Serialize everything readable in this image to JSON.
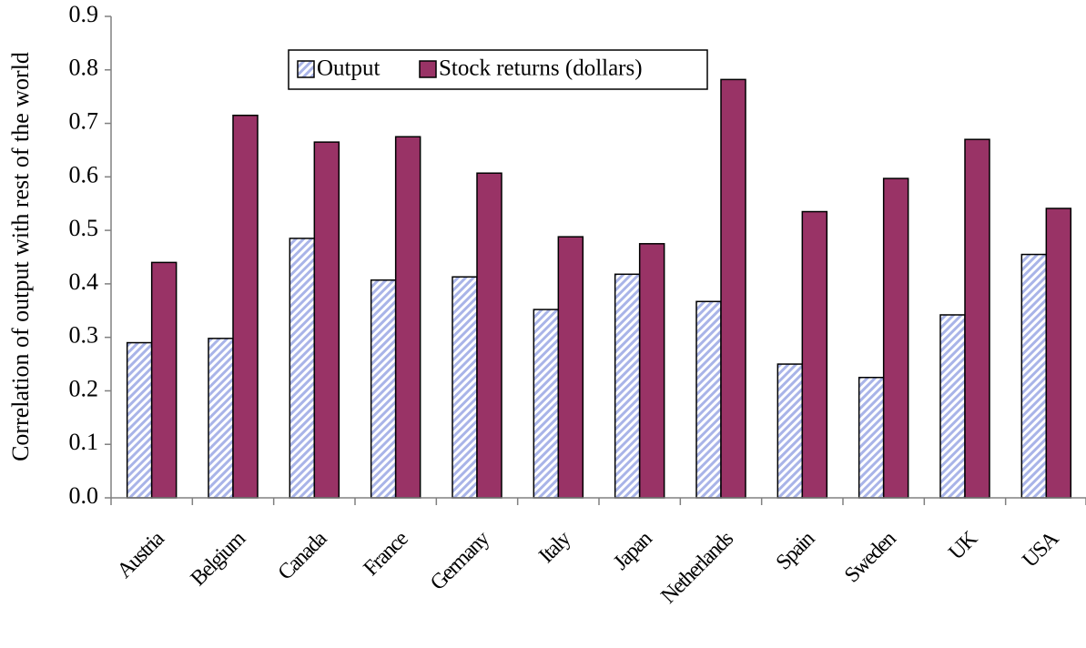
{
  "chart_data": {
    "type": "bar",
    "y_label": "Correlation of output with rest of the world",
    "categories": [
      "Austria",
      "Belgium",
      "Canada",
      "France",
      "Germany",
      "Italy",
      "Japan",
      "Netherlands",
      "Spain",
      "Sweden",
      "UK",
      "USA"
    ],
    "series": [
      {
        "name": "Output",
        "color": "#a9b4e8",
        "values": [
          0.29,
          0.298,
          0.485,
          0.407,
          0.413,
          0.352,
          0.418,
          0.367,
          0.25,
          0.225,
          0.342,
          0.455
        ]
      },
      {
        "name": "Stock returns (dollars)",
        "color": "#993366",
        "values": [
          0.44,
          0.715,
          0.665,
          0.675,
          0.607,
          0.488,
          0.475,
          0.782,
          0.535,
          0.597,
          0.67,
          0.541
        ]
      }
    ],
    "ylim": [
      0,
      0.9
    ],
    "yticks": [
      {
        "value": 0,
        "label": "0.0"
      },
      0.1,
      0.2,
      0.3,
      0.4,
      0.5,
      0.6,
      0.7,
      0.8,
      0.9
    ]
  }
}
